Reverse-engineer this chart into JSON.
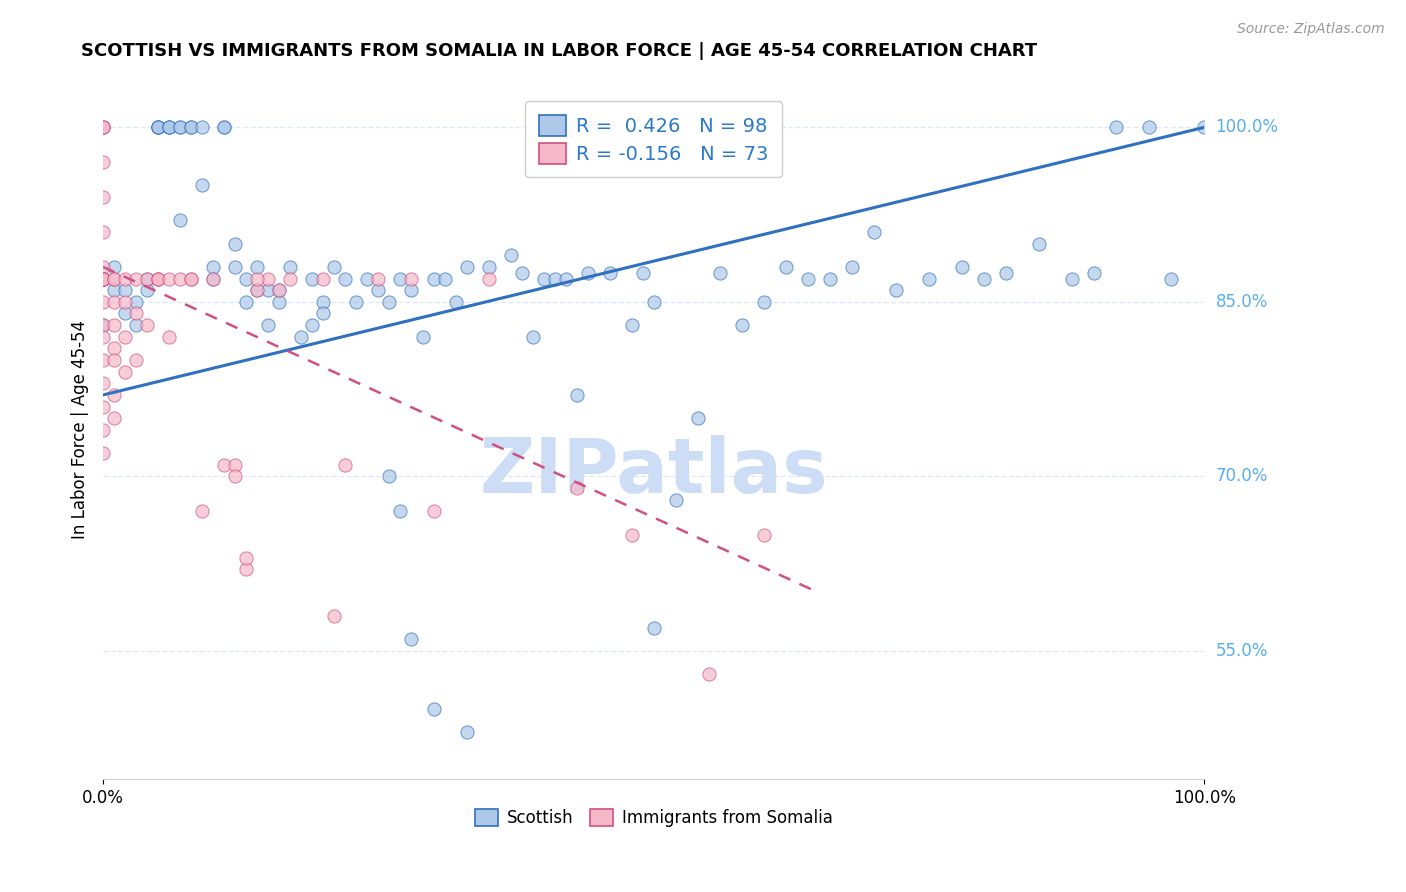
{
  "title": "SCOTTISH VS IMMIGRANTS FROM SOMALIA IN LABOR FORCE | AGE 45-54 CORRELATION CHART",
  "source": "Source: ZipAtlas.com",
  "ylabel": "In Labor Force | Age 45-54",
  "xlim": [
    0.0,
    1.0
  ],
  "ylim": [
    0.44,
    1.04
  ],
  "ytick_labels": [
    "55.0%",
    "70.0%",
    "85.0%",
    "100.0%"
  ],
  "ytick_values": [
    0.55,
    0.7,
    0.85,
    1.0
  ],
  "xtick_labels": [
    "0.0%",
    "100.0%"
  ],
  "xtick_values": [
    0.0,
    1.0
  ],
  "r_blue": 0.426,
  "n_blue": 98,
  "r_pink": -0.156,
  "n_pink": 73,
  "blue_color": "#adc8e8",
  "pink_color": "#f5b8c8",
  "trend_blue_color": "#3070c0",
  "trend_pink_color": "#d05080",
  "legend_text_color": "#2979c8",
  "right_label_color": "#5aadee",
  "watermark_color": "#ccddf5",
  "background_color": "#ffffff",
  "grid_color": "#ddeaf5",
  "blue_trend_x0": 0.0,
  "blue_trend_y0": 0.77,
  "blue_trend_x1": 1.0,
  "blue_trend_y1": 1.0,
  "pink_trend_x0": 0.0,
  "pink_trend_y0": 0.88,
  "pink_trend_x1": 0.65,
  "pink_trend_y1": 0.6,
  "blue_scatter_x": [
    0.0,
    0.0,
    0.01,
    0.01,
    0.02,
    0.02,
    0.03,
    0.03,
    0.04,
    0.04,
    0.05,
    0.05,
    0.05,
    0.05,
    0.06,
    0.06,
    0.06,
    0.07,
    0.07,
    0.07,
    0.08,
    0.08,
    0.09,
    0.09,
    0.1,
    0.1,
    0.11,
    0.11,
    0.12,
    0.12,
    0.13,
    0.13,
    0.14,
    0.14,
    0.15,
    0.15,
    0.16,
    0.16,
    0.17,
    0.18,
    0.19,
    0.19,
    0.2,
    0.2,
    0.21,
    0.22,
    0.23,
    0.24,
    0.25,
    0.26,
    0.27,
    0.28,
    0.29,
    0.3,
    0.31,
    0.32,
    0.33,
    0.35,
    0.37,
    0.38,
    0.39,
    0.4,
    0.41,
    0.42,
    0.44,
    0.46,
    0.48,
    0.49,
    0.5,
    0.52,
    0.54,
    0.56,
    0.58,
    0.6,
    0.62,
    0.64,
    0.66,
    0.68,
    0.7,
    0.72,
    0.75,
    0.78,
    0.8,
    0.82,
    0.85,
    0.88,
    0.9,
    0.92,
    0.95,
    0.97,
    1.0,
    0.43,
    0.5,
    0.28,
    0.3,
    0.26,
    0.27,
    0.33
  ],
  "blue_scatter_y": [
    0.83,
    0.87,
    0.86,
    0.88,
    0.86,
    0.84,
    0.85,
    0.83,
    0.86,
    0.87,
    1.0,
    1.0,
    1.0,
    1.0,
    1.0,
    1.0,
    1.0,
    1.0,
    1.0,
    0.92,
    1.0,
    1.0,
    1.0,
    0.95,
    0.88,
    0.87,
    1.0,
    1.0,
    0.88,
    0.9,
    0.87,
    0.85,
    0.86,
    0.88,
    0.86,
    0.83,
    0.85,
    0.86,
    0.88,
    0.82,
    0.87,
    0.83,
    0.85,
    0.84,
    0.88,
    0.87,
    0.85,
    0.87,
    0.86,
    0.85,
    0.87,
    0.86,
    0.82,
    0.87,
    0.87,
    0.85,
    0.88,
    0.88,
    0.89,
    0.875,
    0.82,
    0.87,
    0.87,
    0.87,
    0.875,
    0.875,
    0.83,
    0.875,
    0.85,
    0.68,
    0.75,
    0.875,
    0.83,
    0.85,
    0.88,
    0.87,
    0.87,
    0.88,
    0.91,
    0.86,
    0.87,
    0.88,
    0.87,
    0.875,
    0.9,
    0.87,
    0.875,
    1.0,
    1.0,
    0.87,
    1.0,
    0.77,
    0.57,
    0.56,
    0.5,
    0.7,
    0.67,
    0.48
  ],
  "pink_scatter_x": [
    0.0,
    0.0,
    0.0,
    0.0,
    0.0,
    0.0,
    0.0,
    0.0,
    0.0,
    0.0,
    0.0,
    0.0,
    0.0,
    0.0,
    0.0,
    0.0,
    0.0,
    0.0,
    0.0,
    0.0,
    0.0,
    0.0,
    0.0,
    0.0,
    0.0,
    0.01,
    0.01,
    0.01,
    0.01,
    0.01,
    0.01,
    0.01,
    0.01,
    0.02,
    0.02,
    0.02,
    0.02,
    0.03,
    0.03,
    0.03,
    0.04,
    0.04,
    0.05,
    0.05,
    0.05,
    0.06,
    0.06,
    0.07,
    0.08,
    0.09,
    0.1,
    0.11,
    0.12,
    0.13,
    0.14,
    0.15,
    0.16,
    0.17,
    0.2,
    0.22,
    0.14,
    0.28,
    0.35,
    0.48,
    0.55,
    0.6,
    0.43,
    0.3,
    0.25,
    0.21,
    0.12,
    0.13,
    0.08
  ],
  "pink_scatter_y": [
    1.0,
    1.0,
    1.0,
    1.0,
    0.97,
    0.94,
    0.91,
    0.88,
    0.87,
    0.87,
    0.87,
    0.87,
    0.85,
    0.83,
    0.82,
    0.8,
    0.78,
    0.76,
    0.74,
    0.72,
    0.87,
    0.87,
    0.87,
    0.87,
    0.87,
    0.87,
    0.87,
    0.85,
    0.83,
    0.81,
    0.8,
    0.77,
    0.75,
    0.87,
    0.85,
    0.82,
    0.79,
    0.87,
    0.84,
    0.8,
    0.87,
    0.83,
    0.87,
    0.87,
    0.87,
    0.87,
    0.82,
    0.87,
    0.87,
    0.67,
    0.87,
    0.71,
    0.71,
    0.62,
    0.86,
    0.87,
    0.86,
    0.87,
    0.87,
    0.71,
    0.87,
    0.87,
    0.87,
    0.65,
    0.53,
    0.65,
    0.69,
    0.67,
    0.87,
    0.58,
    0.7,
    0.63,
    0.87
  ]
}
